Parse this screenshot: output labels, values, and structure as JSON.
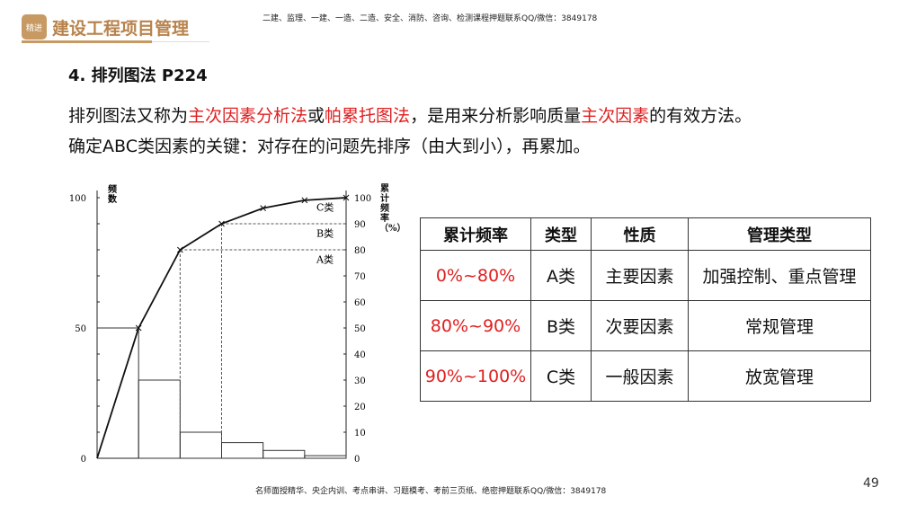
{
  "header": {
    "logo_text": "精进",
    "brand": "建设工程项目管理",
    "note": "二建、监理、一建、一造、二造、安全、消防、咨询、检测课程押题联系QQ/微信：3849178"
  },
  "title": "4. 排列图法 P224",
  "para1": [
    "排列图法又称为",
    "主次因素分析法",
    "或",
    "帕累托图法",
    "，是用来分析影响质量",
    "主次因素",
    "的有效方法。"
  ],
  "para2": "确定ABC类因素的关键：对存在的问题先排序（由大到小），再累加。",
  "accent_color": "#e02020",
  "chart_data": {
    "type": "bar",
    "bar_values": [
      50,
      30,
      10,
      6,
      3,
      1
    ],
    "cumulative_percent": [
      0,
      50,
      80,
      90,
      96,
      99,
      100
    ],
    "left_axis": {
      "label": "频数",
      "ticks": [
        0,
        50,
        100
      ],
      "range": [
        0,
        100
      ]
    },
    "right_axis": {
      "label": "累计频率（%）",
      "ticks": [
        0,
        10,
        20,
        30,
        40,
        50,
        60,
        70,
        80,
        90,
        100
      ],
      "range": [
        0,
        100
      ]
    },
    "zones": [
      "A类",
      "B类",
      "C类"
    ],
    "thresholds": [
      80,
      90
    ]
  },
  "table": {
    "headers": [
      "累计频率",
      "类型",
      "性质",
      "管理类型"
    ],
    "rows": [
      [
        "0%~80%",
        "A类",
        "主要因素",
        "加强控制、重点管理"
      ],
      [
        "80%~90%",
        "B类",
        "次要因素",
        "常规管理"
      ],
      [
        "90%~100%",
        "C类",
        "一般因素",
        "放宽管理"
      ]
    ]
  },
  "footer": "名师面授精华、央企内训、考点串讲、习题模考、考前三页纸、绝密押题联系QQ/微信：3849178",
  "page_number": "49"
}
